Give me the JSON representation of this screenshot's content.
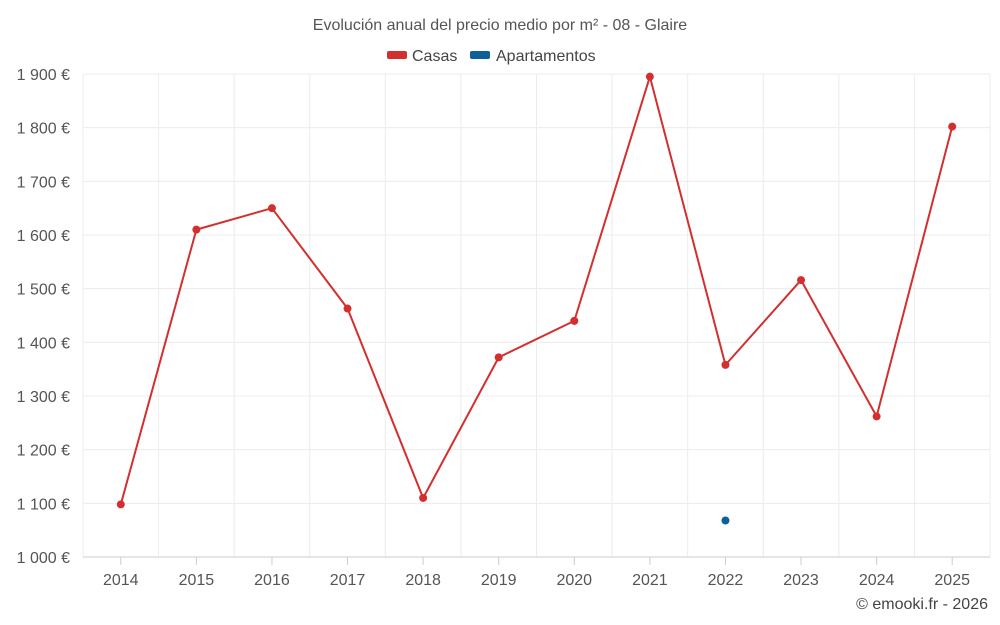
{
  "chart_data": {
    "type": "line",
    "title": "Evolución anual del precio medio por m² - 08 - Glaire",
    "xlabel": "",
    "ylabel": "",
    "categories": [
      "2014",
      "2015",
      "2016",
      "2017",
      "2018",
      "2019",
      "2020",
      "2021",
      "2022",
      "2023",
      "2024",
      "2025"
    ],
    "ylim": [
      1000,
      1900
    ],
    "yticks": [
      1000,
      1100,
      1200,
      1300,
      1400,
      1500,
      1600,
      1700,
      1800,
      1900
    ],
    "ytick_labels": [
      "1 000 €",
      "1 100 €",
      "1 200 €",
      "1 300 €",
      "1 400 €",
      "1 500 €",
      "1 600 €",
      "1 700 €",
      "1 800 €",
      "1 900 €"
    ],
    "grid": true,
    "legend_position": "top-center",
    "series": [
      {
        "name": "Casas",
        "color": "#d32f2f",
        "values": [
          1098,
          1610,
          1650,
          1463,
          1110,
          1372,
          1440,
          1895,
          1358,
          1516,
          1262,
          1802
        ]
      },
      {
        "name": "Apartamentos",
        "color": "#0d6196",
        "values": [
          null,
          null,
          null,
          null,
          null,
          null,
          null,
          null,
          1068,
          null,
          null,
          null
        ]
      }
    ]
  },
  "credit": "© emooki.fr - 2026"
}
